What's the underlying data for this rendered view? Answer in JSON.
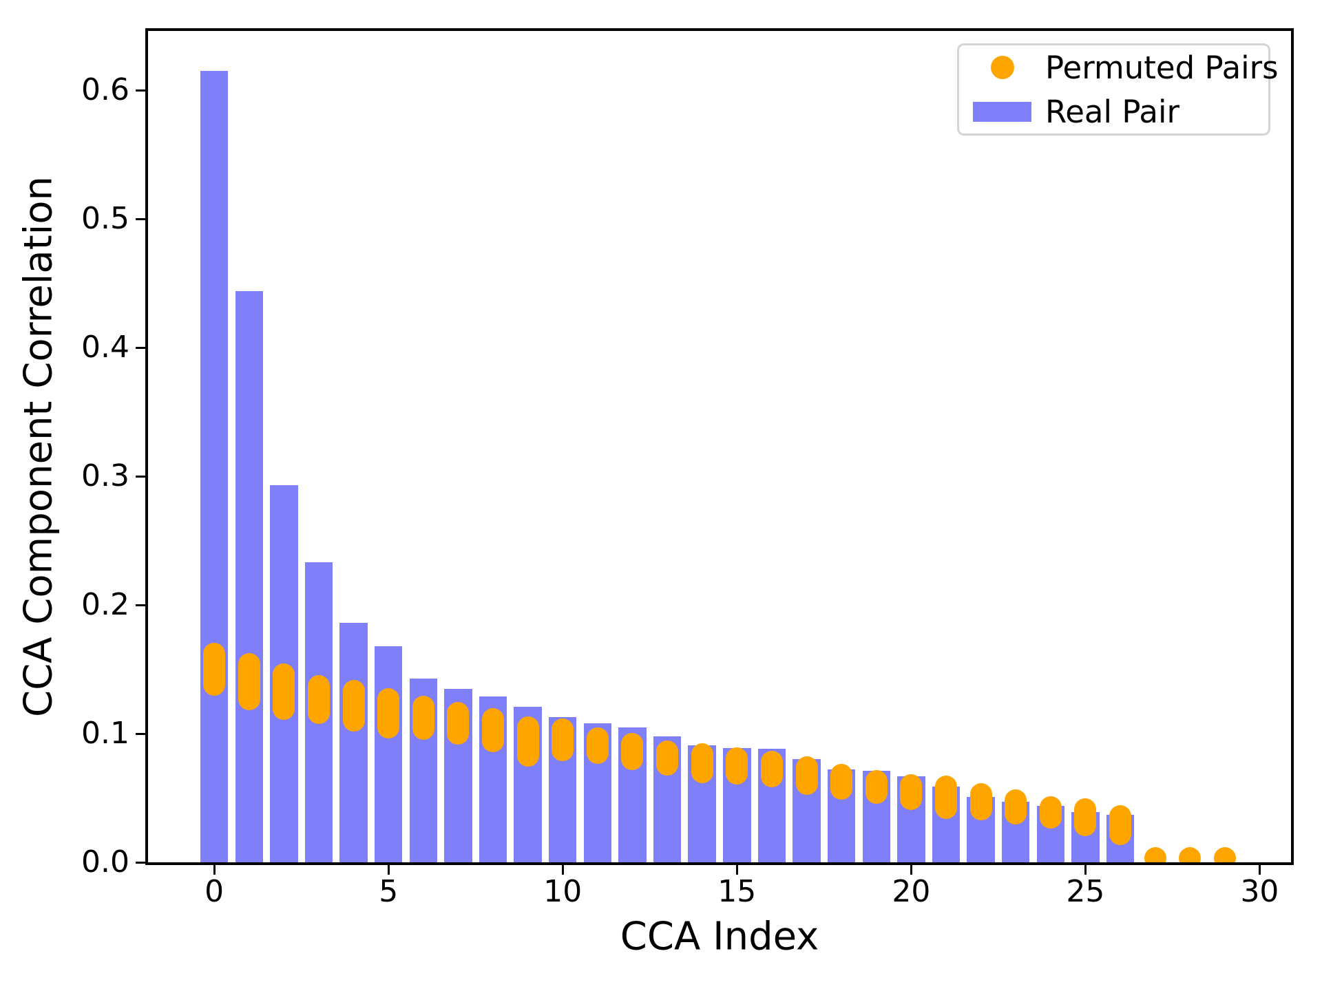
{
  "chart_data": {
    "type": "bar",
    "title": "",
    "xlabel": "CCA Index",
    "ylabel": "CCA Component Correlation",
    "x": [
      0,
      1,
      2,
      3,
      4,
      5,
      6,
      7,
      8,
      9,
      10,
      11,
      12,
      13,
      14,
      15,
      16,
      17,
      18,
      19,
      20,
      21,
      22,
      23,
      24,
      25,
      26,
      27,
      28,
      29
    ],
    "series": [
      {
        "name": "Real Pair",
        "type": "bar",
        "color": "#7f7ffa",
        "values": [
          0.615,
          0.444,
          0.293,
          0.233,
          0.186,
          0.168,
          0.143,
          0.135,
          0.129,
          0.121,
          0.113,
          0.108,
          0.105,
          0.098,
          0.091,
          0.089,
          0.088,
          0.08,
          0.072,
          0.071,
          0.067,
          0.059,
          0.051,
          0.047,
          0.044,
          0.039,
          0.037,
          0,
          0,
          0
        ]
      },
      {
        "name": "Permuted Pairs",
        "type": "scatter",
        "color": "#ffa500",
        "note": "many overlapping permutation dots per index; ranges give min/max of dot centers",
        "ranges": [
          [
            0.138,
            0.162
          ],
          [
            0.127,
            0.154
          ],
          [
            0.119,
            0.146
          ],
          [
            0.116,
            0.137
          ],
          [
            0.11,
            0.133
          ],
          [
            0.105,
            0.127
          ],
          [
            0.104,
            0.121
          ],
          [
            0.1,
            0.116
          ],
          [
            0.094,
            0.111
          ],
          [
            0.083,
            0.105
          ],
          [
            0.087,
            0.103
          ],
          [
            0.085,
            0.096
          ],
          [
            0.08,
            0.092
          ],
          [
            0.076,
            0.086
          ],
          [
            0.07,
            0.084
          ],
          [
            0.069,
            0.081
          ],
          [
            0.067,
            0.078
          ],
          [
            0.061,
            0.074
          ],
          [
            0.057,
            0.068
          ],
          [
            0.054,
            0.063
          ],
          [
            0.049,
            0.06
          ],
          [
            0.042,
            0.059
          ],
          [
            0.041,
            0.053
          ],
          [
            0.038,
            0.048
          ],
          [
            0.035,
            0.043
          ],
          [
            0.029,
            0.041
          ],
          [
            0.022,
            0.036
          ],
          [
            0.003,
            0.003
          ],
          [
            0.003,
            0.003
          ],
          [
            0.003,
            0.003
          ]
        ]
      }
    ],
    "xticks": [
      0,
      5,
      10,
      15,
      20,
      25,
      30
    ],
    "yticks": [
      "0.0",
      "0.1",
      "0.2",
      "0.3",
      "0.4",
      "0.5",
      "0.6"
    ],
    "xlim": [
      -1.9,
      30.9
    ],
    "ylim": [
      0,
      0.646
    ],
    "grid": false,
    "legend": {
      "position": "upper right",
      "permuted_label": "Permuted Pairs",
      "real_label": "Real Pair"
    },
    "colors": {
      "real_pair": "#7f7ffa",
      "permuted_pairs": "#ffa500",
      "axis": "#000000",
      "background": "#ffffff",
      "legend_border": "#d4d4d4"
    }
  }
}
